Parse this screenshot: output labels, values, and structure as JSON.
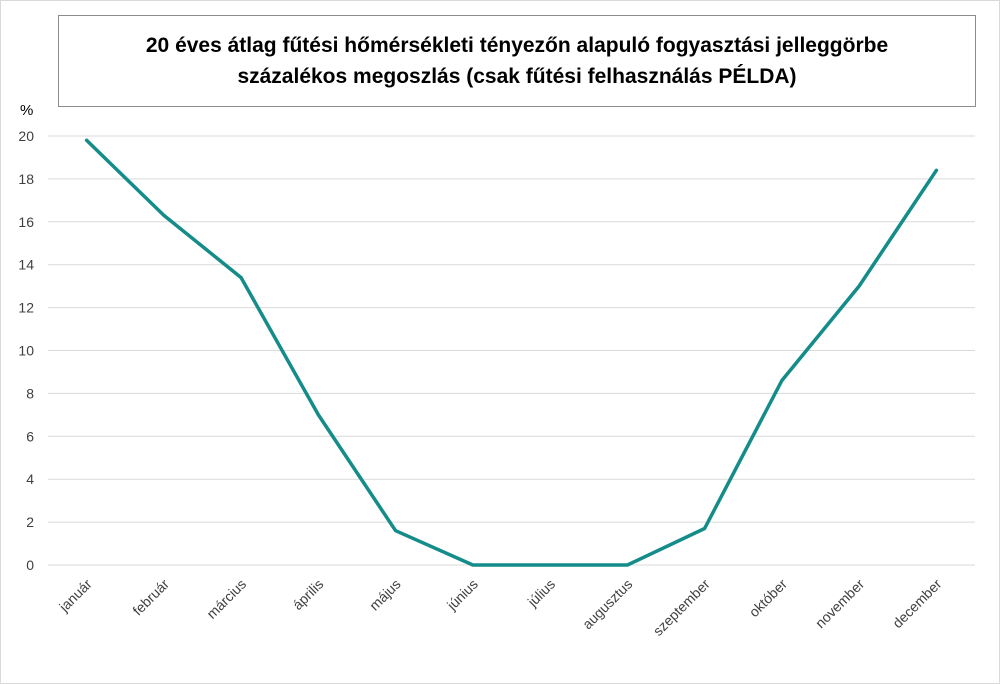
{
  "chart_data": {
    "type": "line",
    "title_line1": "20 éves átlag fűtési hőmérsékleti tényezőn alapuló fogyasztási jelleggörbe",
    "title_line2": "százalékos megoszlás (csak fűtési felhasználás PÉLDA)",
    "ylabel": "%",
    "xlabel": "",
    "ylim": [
      0,
      20
    ],
    "yticks": [
      "0",
      "2",
      "4",
      "6",
      "8",
      "10",
      "12",
      "14",
      "16",
      "18",
      "20"
    ],
    "grid": true,
    "legend": "none",
    "categories": [
      "január",
      "február",
      "március",
      "április",
      "május",
      "június",
      "július",
      "augusztus",
      "szeptember",
      "október",
      "november",
      "december"
    ],
    "series": [
      {
        "values": [
          19.8,
          16.3,
          13.4,
          7.0,
          1.6,
          0.0,
          0.0,
          0.0,
          1.7,
          8.6,
          13.0,
          18.4
        ],
        "color": "#138c8a"
      }
    ]
  }
}
